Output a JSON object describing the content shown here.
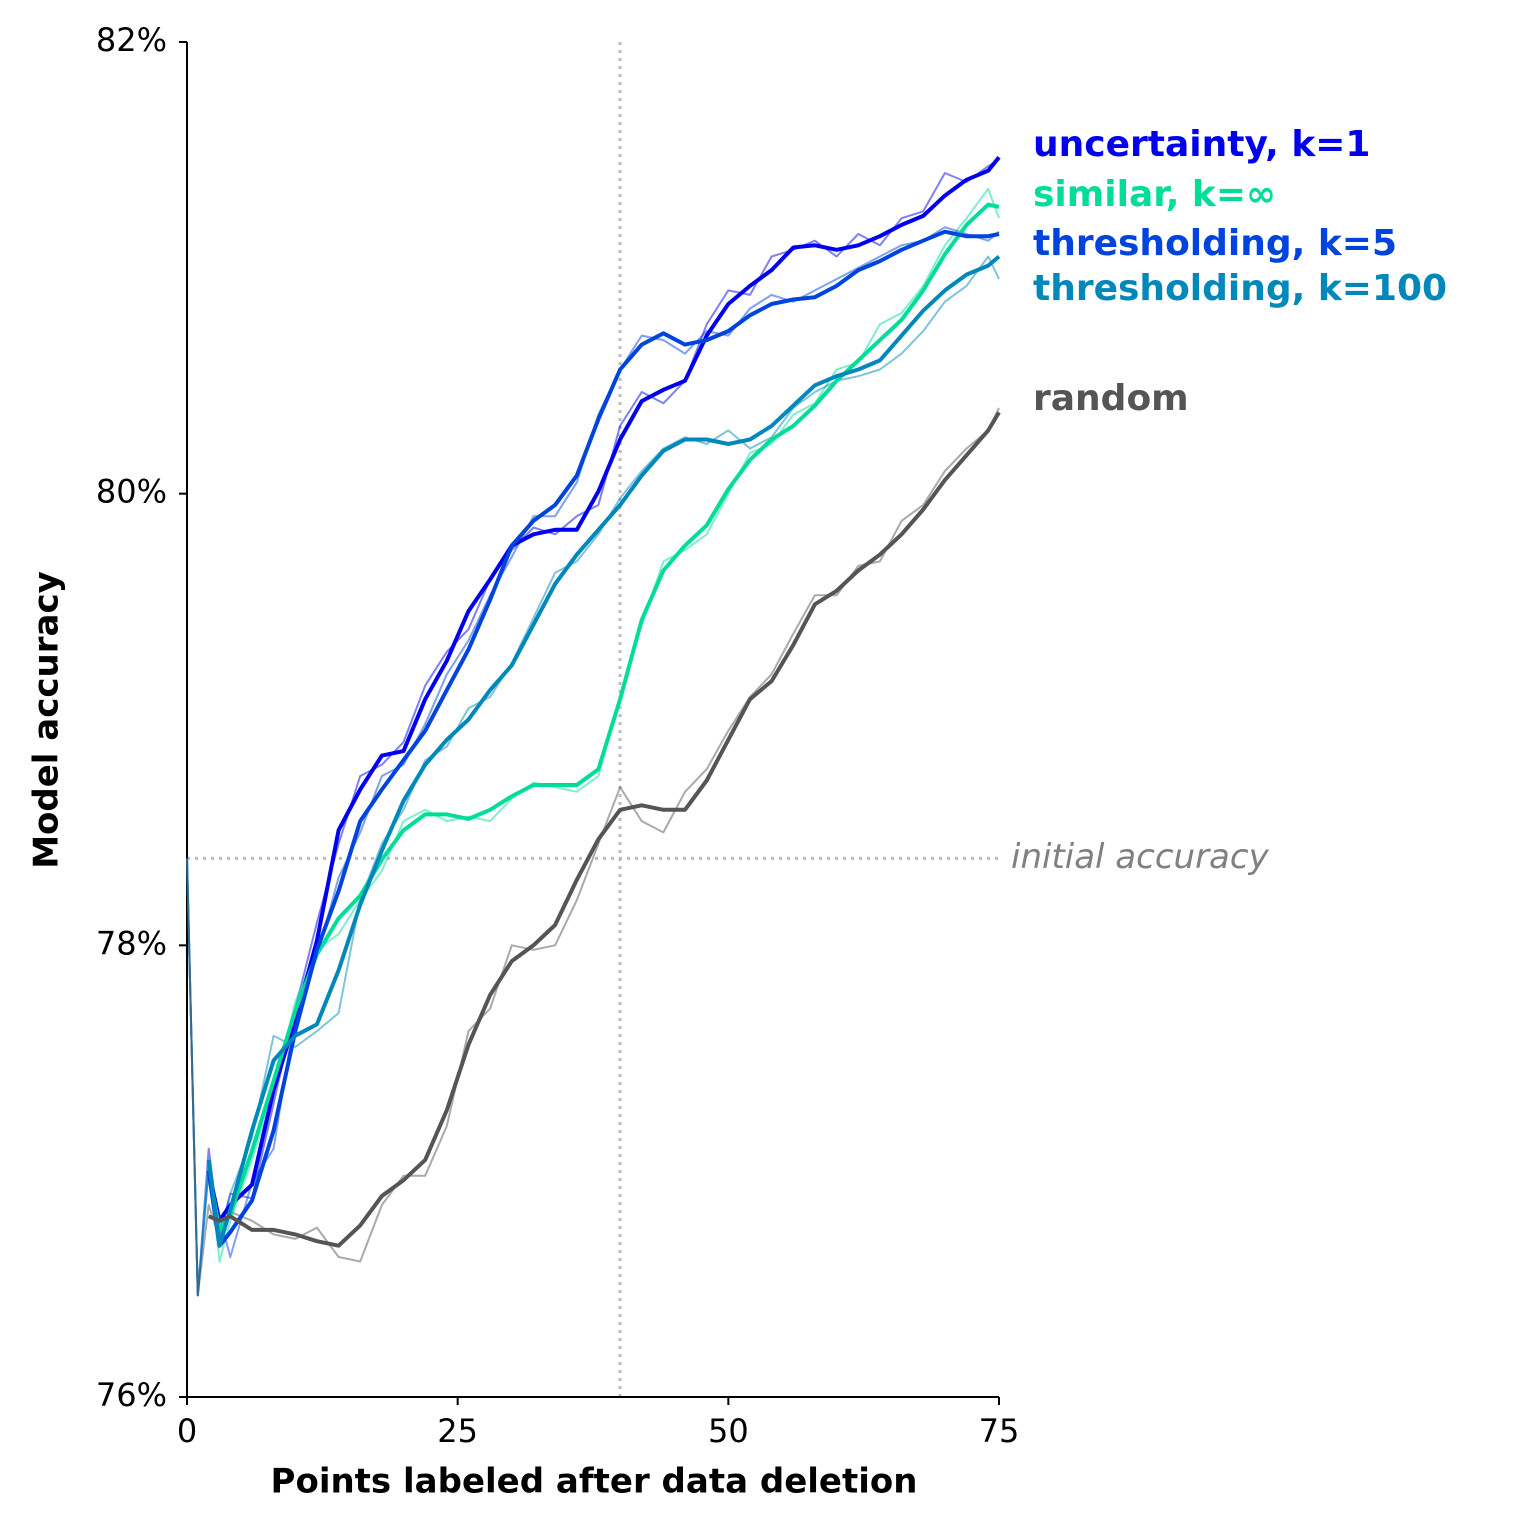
{
  "chart_data": {
    "type": "line",
    "xlabel": "Points labeled after data deletion",
    "ylabel": "Model accuracy",
    "xlim": [
      0,
      75
    ],
    "xticks": [
      0,
      25,
      50,
      75
    ],
    "ylim": [
      76,
      82
    ],
    "yticks": [
      {
        "value": 76,
        "label": "76%"
      },
      {
        "value": 78,
        "label": "78%"
      },
      {
        "value": 80,
        "label": "80%"
      },
      {
        "value": 82,
        "label": "82%"
      }
    ],
    "vline": 40,
    "hline": {
      "value": 78.385,
      "label": "initial accuracy"
    },
    "x": [
      0,
      1,
      2,
      3,
      4,
      6,
      8,
      10,
      12,
      14,
      16,
      18,
      20,
      22,
      24,
      26,
      28,
      30,
      32,
      34,
      36,
      38,
      40,
      42,
      44,
      46,
      48,
      50,
      52,
      54,
      56,
      58,
      60,
      62,
      64,
      66,
      68,
      70,
      72,
      74,
      75
    ],
    "series": [
      {
        "name": "uncertainty, k=1",
        "color": "#0000ee",
        "opacity": 1,
        "width": 4,
        "values": [
          null,
          null,
          77.0,
          76.78,
          76.85,
          76.94,
          77.36,
          77.67,
          78.02,
          78.51,
          78.69,
          78.84,
          78.86,
          79.09,
          79.26,
          79.48,
          79.62,
          79.77,
          79.82,
          79.84,
          79.84,
          80.01,
          80.24,
          80.41,
          80.46,
          80.5,
          80.7,
          80.84,
          80.92,
          80.99,
          81.09,
          81.1,
          81.08,
          81.1,
          81.14,
          81.19,
          81.23,
          81.32,
          81.39,
          81.43,
          81.49
        ]
      },
      {
        "name": "similar, k=∞",
        "color": "#00dd99",
        "opacity": 1,
        "width": 4,
        "values": [
          null,
          null,
          77.0,
          76.74,
          76.81,
          77.09,
          77.4,
          77.71,
          77.96,
          78.12,
          78.22,
          78.38,
          78.51,
          78.58,
          78.58,
          78.56,
          78.6,
          78.66,
          78.71,
          78.71,
          78.71,
          78.78,
          79.09,
          79.44,
          79.66,
          79.77,
          79.86,
          80.02,
          80.15,
          80.24,
          80.3,
          80.39,
          80.5,
          80.59,
          80.68,
          80.77,
          80.9,
          81.06,
          81.19,
          81.28,
          81.27
        ]
      },
      {
        "name": "thresholding, k=5",
        "color": "#0044dd",
        "opacity": 1,
        "width": 4,
        "values": [
          null,
          null,
          77.0,
          76.67,
          76.73,
          76.87,
          77.18,
          77.62,
          77.98,
          78.24,
          78.55,
          78.69,
          78.82,
          78.95,
          79.13,
          79.31,
          79.53,
          79.77,
          79.88,
          79.95,
          80.08,
          80.33,
          80.55,
          80.66,
          80.71,
          80.66,
          80.68,
          80.72,
          80.79,
          80.84,
          80.86,
          80.87,
          80.92,
          80.99,
          81.03,
          81.08,
          81.12,
          81.16,
          81.14,
          81.14,
          81.15
        ]
      },
      {
        "name": "thresholding, k=100",
        "color": "#0088bb",
        "opacity": 1,
        "width": 4,
        "values": [
          null,
          null,
          77.05,
          76.67,
          76.83,
          77.18,
          77.49,
          77.6,
          77.65,
          77.89,
          78.18,
          78.42,
          78.64,
          78.8,
          78.91,
          79.0,
          79.13,
          79.24,
          79.42,
          79.6,
          79.73,
          79.84,
          79.95,
          80.08,
          80.19,
          80.24,
          80.24,
          80.22,
          80.24,
          80.3,
          80.39,
          80.48,
          80.52,
          80.55,
          80.59,
          80.7,
          80.81,
          80.9,
          80.97,
          81.01,
          81.05
        ]
      },
      {
        "name": "random",
        "color": "#555555",
        "opacity": 1,
        "width": 4,
        "values": [
          null,
          null,
          76.8,
          76.78,
          76.8,
          76.74,
          76.74,
          76.72,
          76.69,
          76.67,
          76.76,
          76.89,
          76.96,
          77.05,
          77.27,
          77.56,
          77.78,
          77.93,
          78.0,
          78.09,
          78.29,
          78.47,
          78.6,
          78.62,
          78.6,
          78.6,
          78.73,
          78.91,
          79.09,
          79.17,
          79.33,
          79.51,
          79.57,
          79.66,
          79.73,
          79.82,
          79.93,
          80.06,
          80.17,
          80.28,
          80.36
        ]
      },
      {
        "color": "#0000ee",
        "opacity": 0.5,
        "width": 2,
        "values": [
          78.385,
          76.45,
          77.1,
          76.72,
          76.9,
          76.88,
          77.3,
          77.72,
          78.1,
          78.45,
          78.75,
          78.8,
          78.9,
          79.15,
          79.3,
          79.4,
          79.62,
          79.75,
          79.85,
          79.82,
          79.9,
          79.95,
          80.3,
          80.45,
          80.4,
          80.5,
          80.75,
          80.9,
          80.88,
          81.05,
          81.08,
          81.12,
          81.05,
          81.15,
          81.1,
          81.22,
          81.25,
          81.42,
          81.38,
          81.45,
          81.48
        ]
      },
      {
        "color": "#00dd99",
        "opacity": 0.5,
        "width": 2,
        "values": [
          78.385,
          76.45,
          77.05,
          76.6,
          76.78,
          77.05,
          77.35,
          77.75,
          77.98,
          78.05,
          78.2,
          78.33,
          78.55,
          78.6,
          78.55,
          78.57,
          78.55,
          78.65,
          78.72,
          78.7,
          78.68,
          78.75,
          79.1,
          79.42,
          79.7,
          79.75,
          79.82,
          80.0,
          80.18,
          80.22,
          80.35,
          80.4,
          80.55,
          80.58,
          80.75,
          80.8,
          80.92,
          81.1,
          81.22,
          81.35,
          81.22
        ]
      },
      {
        "color": "#0044dd",
        "opacity": 0.5,
        "width": 2,
        "values": [
          78.385,
          76.45,
          77.02,
          76.8,
          76.62,
          76.95,
          77.1,
          77.7,
          77.95,
          78.3,
          78.5,
          78.75,
          78.8,
          78.98,
          79.2,
          79.35,
          79.55,
          79.72,
          79.9,
          79.9,
          80.05,
          80.35,
          80.55,
          80.7,
          80.68,
          80.62,
          80.72,
          80.7,
          80.82,
          80.88,
          80.85,
          80.9,
          80.95,
          81.0,
          81.05,
          81.1,
          81.12,
          81.18,
          81.15,
          81.12,
          81.16
        ]
      },
      {
        "color": "#0088bb",
        "opacity": 0.5,
        "width": 2,
        "values": [
          78.385,
          76.45,
          77.0,
          76.7,
          76.9,
          77.15,
          77.6,
          77.55,
          77.62,
          77.7,
          78.2,
          78.45,
          78.6,
          78.82,
          78.88,
          79.05,
          79.1,
          79.25,
          79.45,
          79.65,
          79.7,
          79.82,
          79.98,
          80.1,
          80.2,
          80.25,
          80.22,
          80.28,
          80.2,
          80.25,
          80.38,
          80.45,
          80.5,
          80.52,
          80.55,
          80.62,
          80.72,
          80.85,
          80.92,
          81.05,
          80.95
        ]
      },
      {
        "color": "#555555",
        "opacity": 0.5,
        "width": 2,
        "values": [
          78.385,
          76.45,
          76.85,
          76.7,
          76.82,
          76.78,
          76.72,
          76.7,
          76.75,
          76.62,
          76.6,
          76.85,
          76.98,
          76.98,
          77.2,
          77.62,
          77.72,
          78.0,
          77.98,
          78.0,
          78.2,
          78.45,
          78.7,
          78.55,
          78.5,
          78.68,
          78.78,
          78.95,
          79.1,
          79.2,
          79.38,
          79.55,
          79.55,
          79.68,
          79.7,
          79.88,
          79.95,
          80.1,
          80.2,
          80.28,
          80.38
        ]
      }
    ]
  }
}
